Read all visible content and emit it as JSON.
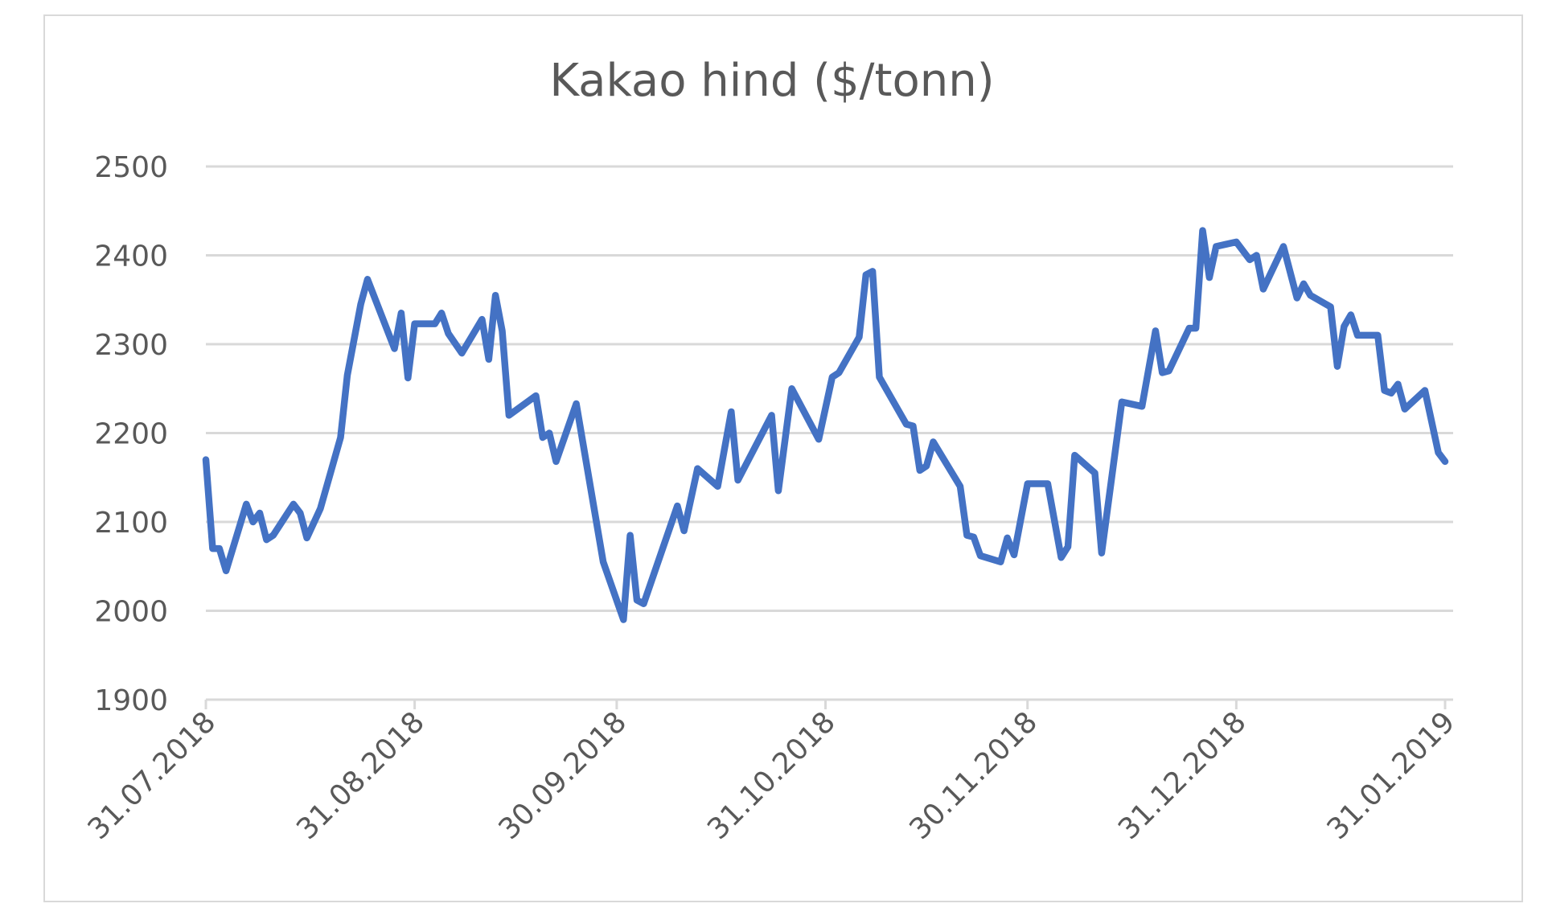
{
  "chart_data": {
    "type": "line",
    "title": "Kakao hind ($/tonn)",
    "xlabel": "",
    "ylabel": "",
    "ylim": [
      1900,
      2500
    ],
    "yticks": [
      "1900",
      "2000",
      "2100",
      "2200",
      "2300",
      "2400",
      "2500"
    ],
    "xticks": [
      "31.07.2018",
      "31.08.2018",
      "30.09.2018",
      "31.10.2018",
      "30.11.2018",
      "31.12.2018",
      "31.01.2019"
    ],
    "grid": true,
    "legend": "none",
    "line_color": "#4472C4",
    "series": [
      {
        "x": [
          "31.07.2018",
          "01.08.2018",
          "02.08.2018",
          "03.08.2018",
          "06.08.2018",
          "07.08.2018",
          "08.08.2018",
          "09.08.2018",
          "10.08.2018",
          "13.08.2018",
          "14.08.2018",
          "15.08.2018",
          "17.08.2018",
          "20.08.2018",
          "21.08.2018",
          "23.08.2018",
          "24.08.2018",
          "28.08.2018",
          "29.08.2018",
          "30.08.2018",
          "31.08.2018",
          "03.09.2018",
          "04.09.2018",
          "05.09.2018",
          "07.09.2018",
          "10.09.2018",
          "11.09.2018",
          "12.09.2018",
          "13.09.2018",
          "14.09.2018",
          "18.09.2018",
          "19.09.2018",
          "20.09.2018",
          "21.09.2018",
          "24.09.2018",
          "28.09.2018",
          "01.10.2018",
          "02.10.2018",
          "03.10.2018",
          "04.10.2018",
          "09.10.2018",
          "10.10.2018",
          "12.10.2018",
          "15.10.2018",
          "17.10.2018",
          "18.10.2018",
          "23.10.2018",
          "24.10.2018",
          "26.10.2018",
          "30.10.2018",
          "01.11.2018",
          "02.11.2018",
          "05.11.2018",
          "06.11.2018",
          "07.11.2018",
          "08.11.2018",
          "12.11.2018",
          "13.11.2018",
          "14.11.2018",
          "15.11.2018",
          "16.11.2018",
          "20.11.2018",
          "21.11.2018",
          "22.11.2018",
          "23.11.2018",
          "26.11.2018",
          "27.11.2018",
          "28.11.2018",
          "30.11.2018",
          "03.12.2018",
          "05.12.2018",
          "06.12.2018",
          "07.12.2018",
          "10.12.2018",
          "11.12.2018",
          "14.12.2018",
          "17.12.2018",
          "19.12.2018",
          "20.12.2018",
          "21.12.2018",
          "24.12.2018",
          "25.12.2018",
          "26.12.2018",
          "27.12.2018",
          "28.12.2018",
          "31.12.2018",
          "02.01.2019",
          "03.01.2019",
          "04.01.2019",
          "07.01.2019",
          "09.01.2019",
          "10.01.2019",
          "11.01.2019",
          "14.01.2019",
          "15.01.2019",
          "16.01.2019",
          "17.01.2019",
          "18.01.2019",
          "21.01.2019",
          "22.01.2019",
          "23.01.2019",
          "24.01.2019",
          "25.01.2019",
          "28.01.2019",
          "30.01.2019",
          "31.01.2019"
        ],
        "y": [
          2170,
          2070,
          2070,
          2045,
          2120,
          2100,
          2110,
          2080,
          2085,
          2120,
          2110,
          2082,
          2115,
          2195,
          2265,
          2345,
          2373,
          2295,
          2335,
          2262,
          2323,
          2323,
          2335,
          2312,
          2290,
          2328,
          2283,
          2355,
          2315,
          2220,
          2242,
          2195,
          2200,
          2168,
          2233,
          2055,
          1990,
          2085,
          2012,
          2008,
          2118,
          2090,
          2160,
          2140,
          2224,
          2147,
          2220,
          2135,
          2250,
          2193,
          2263,
          2268,
          2308,
          2378,
          2382,
          2263,
          2210,
          2208,
          2158,
          2163,
          2190,
          2140,
          2085,
          2083,
          2062,
          2055,
          2082,
          2063,
          2143,
          2143,
          2060,
          2072,
          2175,
          2155,
          2065,
          2235,
          2230,
          2315,
          2268,
          2270,
          2318,
          2318,
          2428,
          2375,
          2410,
          2415,
          2395,
          2400,
          2362,
          2410,
          2352,
          2368,
          2355,
          2342,
          2275,
          2320,
          2333,
          2310,
          2310,
          2248,
          2245,
          2255,
          2227,
          2248,
          2178,
          2168
        ]
      }
    ]
  }
}
